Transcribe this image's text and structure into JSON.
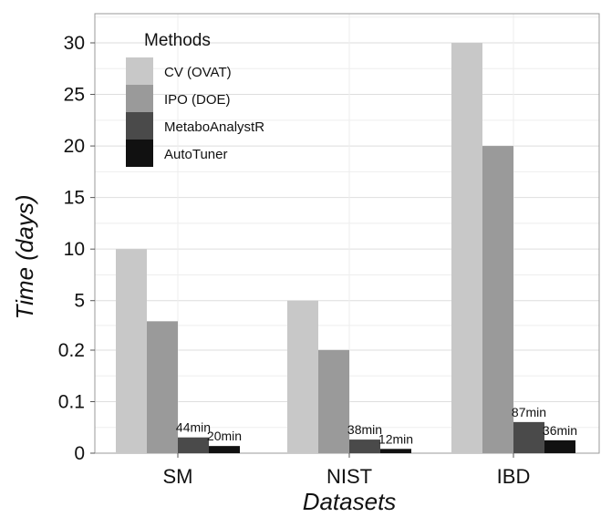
{
  "chart_data": {
    "type": "bar",
    "xlabel": "Datasets",
    "ylabel": "Time (days)",
    "categories": [
      "SM",
      "NIST",
      "IBD"
    ],
    "y_ticks": [
      "0",
      "0.1",
      "0.2",
      "5",
      "10",
      "15",
      "20",
      "25",
      "30"
    ],
    "y_scale_note": "piecewise axis: 0–0.2 and 0.2–30 segments",
    "legend": {
      "title": "Methods",
      "placement": "top-left"
    },
    "series": [
      {
        "name": "CV (OVAT)",
        "color": "#c8c8c8",
        "values": [
          10,
          5,
          30
        ],
        "labels": [
          "",
          "",
          ""
        ]
      },
      {
        "name": "IPO (DOE)",
        "color": "#9a9a9a",
        "values": [
          3,
          0.21,
          20
        ],
        "labels": [
          "",
          "",
          ""
        ]
      },
      {
        "name": "MetaboAnalystR",
        "color": "#4a4a4a",
        "values": [
          0.0306,
          0.0264,
          0.0604
        ],
        "labels": [
          "44min",
          "38min",
          "87min"
        ]
      },
      {
        "name": "AutoTuner",
        "color": "#111111",
        "values": [
          0.0139,
          0.0083,
          0.025
        ],
        "labels": [
          "20min",
          "12min",
          "36min"
        ]
      }
    ],
    "grid": true
  }
}
